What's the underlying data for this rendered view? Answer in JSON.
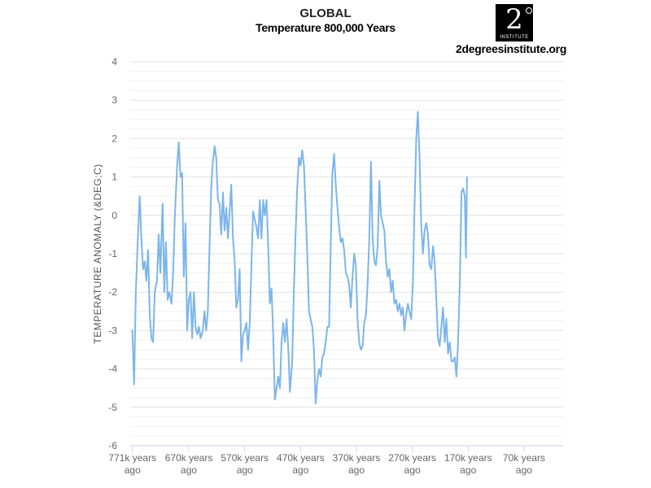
{
  "header": {
    "title": "GLOBAL",
    "subtitle": "Temperature 800,000 Years"
  },
  "logo": {
    "digit": "2",
    "text": "INSTITUTE",
    "url": "2degreesinstitute.org"
  },
  "chart_data": {
    "type": "line",
    "title": "GLOBAL",
    "subtitle": "Temperature 800,000 Years",
    "ylabel": "TEMPERATURE ANOMALY (&DEG;C)",
    "ylim": [
      -6,
      4
    ],
    "yticks": [
      4,
      3,
      2,
      1,
      0,
      -1,
      -2,
      -3,
      -4,
      -5,
      -6
    ],
    "xlim": [
      -775000,
      0
    ],
    "xticks": [
      {
        "x": -771000,
        "line1": "771k years",
        "line2": "ago"
      },
      {
        "x": -670000,
        "line1": "670k years",
        "line2": "ago"
      },
      {
        "x": -570000,
        "line1": "570k years",
        "line2": "ago"
      },
      {
        "x": -470000,
        "line1": "470k years",
        "line2": "ago"
      },
      {
        "x": -370000,
        "line1": "370k years",
        "line2": "ago"
      },
      {
        "x": -270000,
        "line1": "270k years",
        "line2": "ago"
      },
      {
        "x": -170000,
        "line1": "170k years",
        "line2": "ago"
      },
      {
        "x": -70000,
        "line1": "70k years",
        "line2": "ago"
      }
    ],
    "grid": true,
    "series": [
      {
        "color": "#7cb5ec",
        "points": [
          [
            -771000,
            -3.0
          ],
          [
            -768000,
            -4.4
          ],
          [
            -765000,
            -2.0
          ],
          [
            -761000,
            -0.5
          ],
          [
            -758000,
            0.5
          ],
          [
            -755000,
            -0.6
          ],
          [
            -752000,
            -1.4
          ],
          [
            -749000,
            -1.2
          ],
          [
            -746000,
            -1.7
          ],
          [
            -743000,
            -0.9
          ],
          [
            -740000,
            -2.6
          ],
          [
            -737000,
            -3.2
          ],
          [
            -734000,
            -3.3
          ],
          [
            -731000,
            -2.0
          ],
          [
            -727000,
            -1.7
          ],
          [
            -724000,
            -0.5
          ],
          [
            -721000,
            -1.5
          ],
          [
            -717000,
            0.3
          ],
          [
            -714000,
            -2.0
          ],
          [
            -711000,
            -0.7
          ],
          [
            -708000,
            -2.2
          ],
          [
            -705000,
            -2.0
          ],
          [
            -701000,
            -2.3
          ],
          [
            -698000,
            -1.4
          ],
          [
            -695000,
            0.0
          ],
          [
            -691000,
            1.3
          ],
          [
            -688000,
            1.9
          ],
          [
            -685000,
            1.0
          ],
          [
            -682000,
            1.1
          ],
          [
            -679000,
            -1.6
          ],
          [
            -676000,
            -0.2
          ],
          [
            -673000,
            -3.0
          ],
          [
            -670000,
            -2.2
          ],
          [
            -667000,
            -2.0
          ],
          [
            -664000,
            -3.2
          ],
          [
            -661000,
            -2.0
          ],
          [
            -658000,
            -2.9
          ],
          [
            -655000,
            -3.1
          ],
          [
            -652000,
            -2.9
          ],
          [
            -649000,
            -3.2
          ],
          [
            -645000,
            -3.0
          ],
          [
            -642000,
            -2.5
          ],
          [
            -639000,
            -3.0
          ],
          [
            -636000,
            -2.5
          ],
          [
            -633000,
            -0.8
          ],
          [
            -630000,
            0.7
          ],
          [
            -627000,
            1.4
          ],
          [
            -624000,
            1.8
          ],
          [
            -621000,
            1.5
          ],
          [
            -618000,
            0.4
          ],
          [
            -615000,
            0.3
          ],
          [
            -612000,
            -0.5
          ],
          [
            -609000,
            0.6
          ],
          [
            -606000,
            -0.4
          ],
          [
            -603000,
            0.2
          ],
          [
            -600000,
            -0.6
          ],
          [
            -597000,
            0.1
          ],
          [
            -594000,
            0.8
          ],
          [
            -591000,
            -0.6
          ],
          [
            -588000,
            -1.2
          ],
          [
            -585000,
            -2.4
          ],
          [
            -582000,
            -2.2
          ],
          [
            -579000,
            -1.4
          ],
          [
            -576000,
            -3.8
          ],
          [
            -573000,
            -3.1
          ],
          [
            -570000,
            -3.0
          ],
          [
            -567000,
            -2.8
          ],
          [
            -564000,
            -3.5
          ],
          [
            -561000,
            -2.8
          ],
          [
            -558000,
            -1.3
          ],
          [
            -555000,
            0.1
          ],
          [
            -552000,
            -0.1
          ],
          [
            -549000,
            -0.3
          ],
          [
            -546000,
            -0.6
          ],
          [
            -543000,
            0.4
          ],
          [
            -540000,
            -0.6
          ],
          [
            -537000,
            0.4
          ],
          [
            -534000,
            0.0
          ],
          [
            -531000,
            0.4
          ],
          [
            -528000,
            -0.8
          ],
          [
            -525000,
            -2.3
          ],
          [
            -522000,
            -1.9
          ],
          [
            -519000,
            -3.1
          ],
          [
            -516000,
            -4.8
          ],
          [
            -513000,
            -4.5
          ],
          [
            -510000,
            -4.2
          ],
          [
            -507000,
            -4.5
          ],
          [
            -504000,
            -3.3
          ],
          [
            -501000,
            -2.8
          ],
          [
            -498000,
            -3.3
          ],
          [
            -495000,
            -2.7
          ],
          [
            -492000,
            -3.5
          ],
          [
            -489000,
            -4.6
          ],
          [
            -485000,
            -3.8
          ],
          [
            -482000,
            -2.0
          ],
          [
            -479000,
            -0.5
          ],
          [
            -476000,
            0.7
          ],
          [
            -473000,
            1.5
          ],
          [
            -470000,
            1.3
          ],
          [
            -467000,
            1.7
          ],
          [
            -464000,
            1.3
          ],
          [
            -461000,
            0.2
          ],
          [
            -458000,
            -1.0
          ],
          [
            -455000,
            -2.5
          ],
          [
            -452000,
            -2.7
          ],
          [
            -449000,
            -2.9
          ],
          [
            -446000,
            -3.5
          ],
          [
            -443000,
            -4.9
          ],
          [
            -440000,
            -4.3
          ],
          [
            -437000,
            -4.0
          ],
          [
            -434000,
            -4.2
          ],
          [
            -431000,
            -3.7
          ],
          [
            -428000,
            -3.6
          ],
          [
            -425000,
            -3.3
          ],
          [
            -422000,
            -2.9
          ],
          [
            -419000,
            -2.9
          ],
          [
            -416000,
            -0.8
          ],
          [
            -413000,
            1.1
          ],
          [
            -410000,
            1.6
          ],
          [
            -407000,
            0.8
          ],
          [
            -404000,
            0.2
          ],
          [
            -401000,
            -0.3
          ],
          [
            -398000,
            -0.7
          ],
          [
            -395000,
            -0.6
          ],
          [
            -392000,
            -0.9
          ],
          [
            -389000,
            -1.5
          ],
          [
            -386000,
            -1.6
          ],
          [
            -383000,
            -1.8
          ],
          [
            -380000,
            -2.4
          ],
          [
            -377000,
            -1.6
          ],
          [
            -374000,
            -1.0
          ],
          [
            -371000,
            -1.3
          ],
          [
            -368000,
            -2.7
          ],
          [
            -365000,
            -3.3
          ],
          [
            -362000,
            -3.5
          ],
          [
            -359000,
            -3.4
          ],
          [
            -356000,
            -2.8
          ],
          [
            -353000,
            -2.6
          ],
          [
            -350000,
            -1.8
          ],
          [
            -347000,
            -0.6
          ],
          [
            -344000,
            1.4
          ],
          [
            -341000,
            -0.6
          ],
          [
            -338000,
            -1.2
          ],
          [
            -335000,
            -1.3
          ],
          [
            -332000,
            -0.8
          ],
          [
            -329000,
            0.9
          ],
          [
            -326000,
            0.0
          ],
          [
            -323000,
            -0.2
          ],
          [
            -320000,
            -0.4
          ],
          [
            -317000,
            -1.2
          ],
          [
            -314000,
            -1.6
          ],
          [
            -311000,
            -1.4
          ],
          [
            -308000,
            -2.0
          ],
          [
            -305000,
            -1.7
          ],
          [
            -302000,
            -2.3
          ],
          [
            -299000,
            -2.2
          ],
          [
            -296000,
            -2.5
          ],
          [
            -293000,
            -2.3
          ],
          [
            -290000,
            -2.6
          ],
          [
            -287000,
            -2.4
          ],
          [
            -284000,
            -3.0
          ],
          [
            -281000,
            -2.6
          ],
          [
            -278000,
            -2.3
          ],
          [
            -275000,
            -2.5
          ],
          [
            -272000,
            -2.7
          ],
          [
            -269000,
            -1.8
          ],
          [
            -266000,
            0.2
          ],
          [
            -263000,
            2.0
          ],
          [
            -260000,
            2.7
          ],
          [
            -257000,
            1.5
          ],
          [
            -254000,
            -0.2
          ],
          [
            -251000,
            -1.0
          ],
          [
            -248000,
            -0.4
          ],
          [
            -245000,
            -0.2
          ],
          [
            -242000,
            -0.5
          ],
          [
            -239000,
            -1.3
          ],
          [
            -236000,
            -1.4
          ],
          [
            -233000,
            -0.8
          ],
          [
            -230000,
            -1.2
          ],
          [
            -227000,
            -2.2
          ],
          [
            -224000,
            -3.2
          ],
          [
            -221000,
            -3.4
          ],
          [
            -218000,
            -2.9
          ],
          [
            -215000,
            -2.4
          ],
          [
            -212000,
            -3.3
          ],
          [
            -209000,
            -2.7
          ],
          [
            -206000,
            -3.6
          ],
          [
            -203000,
            -3.3
          ],
          [
            -200000,
            -3.8
          ],
          [
            -197000,
            -3.8
          ],
          [
            -194000,
            -3.7
          ],
          [
            -191000,
            -4.2
          ],
          [
            -188000,
            -3.3
          ],
          [
            -185000,
            -1.8
          ],
          [
            -182000,
            0.6
          ],
          [
            -179000,
            0.7
          ],
          [
            -176000,
            0.5
          ],
          [
            -174000,
            -1.1
          ],
          [
            -172000,
            1.0
          ]
        ]
      }
    ]
  }
}
